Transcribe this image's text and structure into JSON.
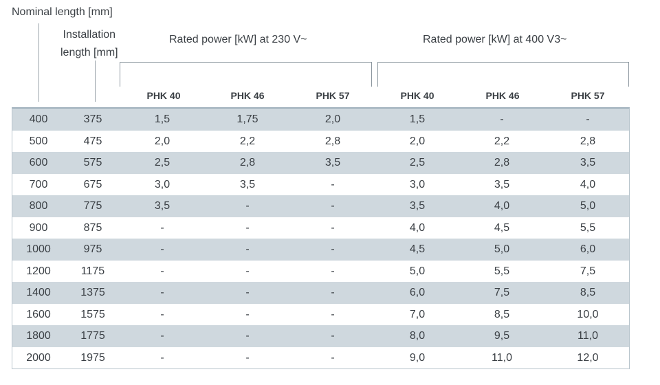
{
  "headers": {
    "nominal_length": "Nominal length [mm]",
    "installation_line1": "Installation",
    "installation_line2": "length [mm]",
    "rated_230": "Rated power [kW] at 230 V~",
    "rated_400": "Rated power [kW] at 400 V3~"
  },
  "models_230": [
    "PHK 40",
    "PHK 46",
    "PHK 57"
  ],
  "models_400": [
    "PHK 40",
    "PHK 46",
    "PHK 57"
  ],
  "rows": [
    [
      "400",
      "375",
      "1,5",
      "1,75",
      "2,0",
      "1,5",
      "-",
      "-"
    ],
    [
      "500",
      "475",
      "2,0",
      "2,2",
      "2,8",
      "2,0",
      "2,2",
      "2,8"
    ],
    [
      "600",
      "575",
      "2,5",
      "2,8",
      "3,5",
      "2,5",
      "2,8",
      "3,5"
    ],
    [
      "700",
      "675",
      "3,0",
      "3,5",
      "-",
      "3,0",
      "3,5",
      "4,0"
    ],
    [
      "800",
      "775",
      "3,5",
      "-",
      "-",
      "3,5",
      "4,0",
      "5,0"
    ],
    [
      "900",
      "875",
      "-",
      "-",
      "-",
      "4,0",
      "4,5",
      "5,5"
    ],
    [
      "1000",
      "975",
      "-",
      "-",
      "-",
      "4,5",
      "5,0",
      "6,0"
    ],
    [
      "1200",
      "1175",
      "-",
      "-",
      "-",
      "5,0",
      "5,5",
      "7,5"
    ],
    [
      "1400",
      "1375",
      "-",
      "-",
      "-",
      "6,0",
      "7,5",
      "8,5"
    ],
    [
      "1600",
      "1575",
      "-",
      "-",
      "-",
      "7,0",
      "8,5",
      "10,0"
    ],
    [
      "1800",
      "1775",
      "-",
      "-",
      "-",
      "8,0",
      "9,5",
      "11,0"
    ],
    [
      "2000",
      "1975",
      "-",
      "-",
      "-",
      "9,0",
      "11,0",
      "12,0"
    ]
  ]
}
